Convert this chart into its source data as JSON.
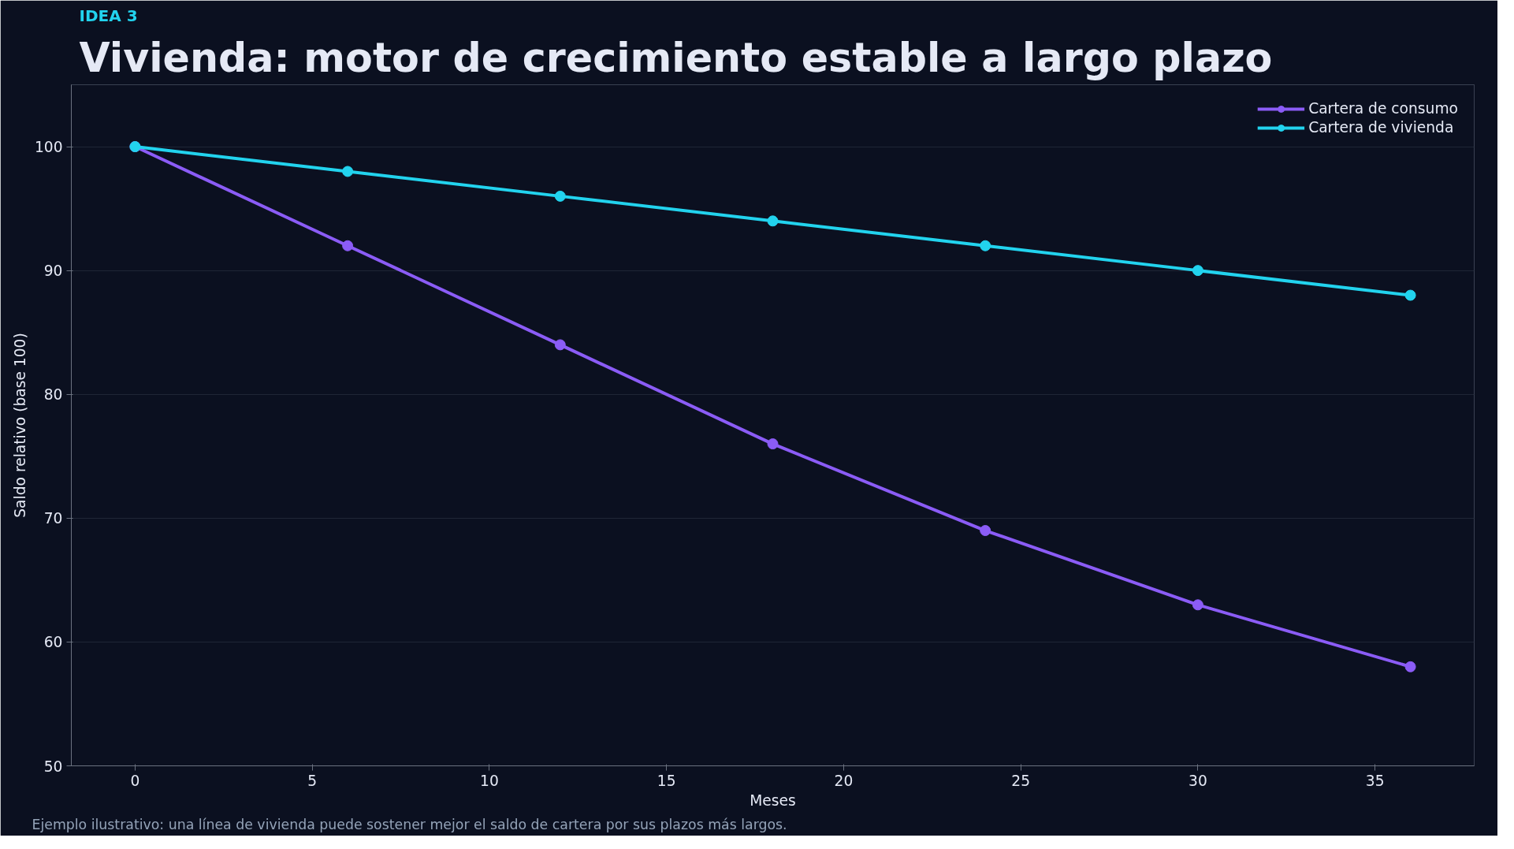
{
  "chart_data": {
    "type": "line",
    "subtitle": "IDEA 3",
    "title": "Vivienda: motor de crecimiento estable a largo plazo",
    "xlabel": "Meses",
    "ylabel": "Saldo relativo (base 100)",
    "x": [
      0,
      6,
      12,
      18,
      24,
      30,
      36
    ],
    "series": [
      {
        "name": "Cartera de consumo",
        "color": "#8b5cf6",
        "values": [
          100,
          92,
          84,
          76,
          69,
          63,
          58
        ]
      },
      {
        "name": "Cartera de vivienda",
        "color": "#22d3ee",
        "values": [
          100,
          98,
          96,
          94,
          92,
          90,
          88
        ]
      }
    ],
    "xlim": [
      -1.8,
      37.8
    ],
    "ylim": [
      50,
      105
    ],
    "xticks": [
      0,
      5,
      10,
      15,
      20,
      25,
      30,
      35
    ],
    "yticks": [
      50,
      60,
      70,
      80,
      90,
      100
    ],
    "grid": "y",
    "legend": "top right",
    "marker": "circle",
    "line_style": "solid",
    "annotations": [
      "Ejemplo ilustrativo: una línea de vivienda puede sostener mejor el saldo de cartera por sus plazos más largos."
    ]
  }
}
